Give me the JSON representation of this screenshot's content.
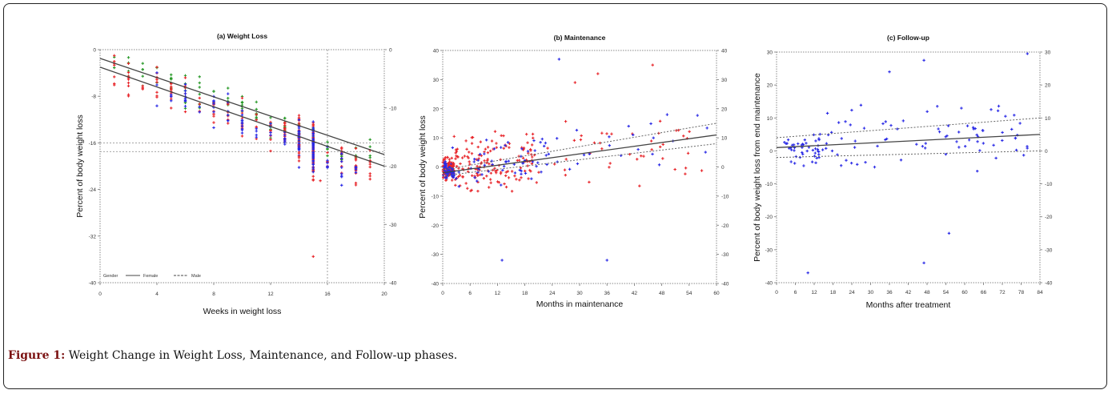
{
  "caption": {
    "label": "Figure 1:",
    "text": "Weight Change in Weight Loss, Maintenance, and Follow-up phases."
  },
  "colors": {
    "female": "#e8262b",
    "male": "#2a2ae6",
    "other": "#2a9a2a",
    "line": "#555555"
  },
  "chart_data": [
    {
      "type": "scatter",
      "title": "(a) Weight Loss",
      "xlabel": "Weeks in weight loss",
      "ylabel": "Percent of body weight loss",
      "xlim": [
        0,
        20
      ],
      "ylim": [
        -40,
        0
      ],
      "xticks": [
        0,
        4,
        8,
        12,
        16,
        20
      ],
      "yticks": [
        0,
        -8,
        -16,
        -24,
        -32,
        -40
      ],
      "y2ticks": [
        0,
        -10,
        -20,
        -30,
        -40
      ],
      "legend": {
        "title": "Gender",
        "items": [
          "Female",
          "Male"
        ],
        "placement": "bottom-left"
      },
      "vline": 16,
      "hlines": [
        -16,
        -17.5
      ],
      "trend_lines": [
        {
          "name": "Female",
          "x": [
            0,
            20
          ],
          "y": [
            -1.5,
            -18
          ]
        },
        {
          "name": "Male",
          "x": [
            0,
            20
          ],
          "y": [
            -3,
            -20
          ]
        }
      ],
      "series": [
        {
          "color": "#2a9a2a",
          "n": 110,
          "xr": [
            1,
            19
          ],
          "slope": -0.9,
          "intercept": -1.5,
          "spread": 2.8
        },
        {
          "color": "#e8262b",
          "n": 150,
          "xr": [
            1,
            19.5
          ],
          "slope": -0.95,
          "intercept": -2.5,
          "spread": 3.2
        },
        {
          "color": "#2a2ae6",
          "n": 90,
          "xr": [
            4,
            18
          ],
          "slope": -1.0,
          "intercept": -2.5,
          "spread": 3.0
        },
        {
          "color": "#e8262b",
          "n": 70,
          "xr": [
            15,
            15
          ],
          "slope": 0,
          "intercept": -17,
          "spread": 5.0
        },
        {
          "color": "#2a2ae6",
          "n": 45,
          "xr": [
            15,
            15
          ],
          "slope": 0,
          "intercept": -17,
          "spread": 4.0
        },
        {
          "color": "#e8262b",
          "n": 30,
          "xr": [
            14,
            14
          ],
          "slope": 0,
          "intercept": -15,
          "spread": 4.0
        },
        {
          "color": "#2a2ae6",
          "n": 20,
          "xr": [
            14,
            14
          ],
          "slope": 0,
          "intercept": -15,
          "spread": 3.0
        }
      ],
      "outliers": [
        {
          "x": 15,
          "y": -35.5,
          "color": "#e8262b"
        },
        {
          "x": 15.5,
          "y": -22.5,
          "color": "#e8262b"
        }
      ]
    },
    {
      "type": "scatter",
      "title": "(b) Maintenance",
      "xlabel": "Months in maintenance",
      "ylabel": "Percent of body weight loss",
      "xlim": [
        0,
        60
      ],
      "ylim": [
        -40,
        40
      ],
      "xticks": [
        0,
        6,
        12,
        18,
        24,
        30,
        36,
        42,
        48,
        54,
        60
      ],
      "yticks": [
        40,
        30,
        20,
        10,
        0,
        -10,
        -20,
        -30,
        -40
      ],
      "y2ticks": [
        40,
        30,
        20,
        10,
        0,
        -10,
        -20,
        -30,
        -40
      ],
      "trend_lines": [
        {
          "name": "",
          "x": [
            0,
            60
          ],
          "y": [
            -2,
            11
          ]
        },
        {
          "name": "",
          "x": [
            0,
            60
          ],
          "y": [
            -3,
            8
          ],
          "dashed": true
        },
        {
          "name": "",
          "x": [
            0,
            60
          ],
          "y": [
            -1,
            15
          ],
          "dashed": true
        }
      ],
      "series": [
        {
          "color": "#e8262b",
          "n": 120,
          "xr": [
            0,
            2.5
          ],
          "slope": 0,
          "intercept": -1,
          "spread": 3.5
        },
        {
          "color": "#2a2ae6",
          "n": 50,
          "xr": [
            0,
            2.5
          ],
          "slope": 0,
          "intercept": -1,
          "spread": 3.0
        },
        {
          "color": "#e8262b",
          "n": 150,
          "xr": [
            2,
            20
          ],
          "slope": 0.2,
          "intercept": -1,
          "spread": 9.0
        },
        {
          "color": "#2a2ae6",
          "n": 55,
          "xr": [
            2,
            24
          ],
          "slope": 0.15,
          "intercept": 0,
          "spread": 7.0
        },
        {
          "color": "#e8262b",
          "n": 45,
          "xr": [
            20,
            58
          ],
          "slope": 0.1,
          "intercept": 3,
          "spread": 14.0
        },
        {
          "color": "#2a2ae6",
          "n": 25,
          "xr": [
            20,
            58
          ],
          "slope": 0.1,
          "intercept": 3,
          "spread": 12.0
        }
      ],
      "outliers": [
        {
          "x": 25.5,
          "y": 37,
          "color": "#2a2ae6"
        },
        {
          "x": 46,
          "y": 35,
          "color": "#e8262b"
        },
        {
          "x": 13,
          "y": -32,
          "color": "#2a2ae6"
        },
        {
          "x": 36,
          "y": -32,
          "color": "#2a2ae6"
        },
        {
          "x": 29,
          "y": 29,
          "color": "#e8262b"
        },
        {
          "x": 34,
          "y": 32,
          "color": "#e8262b"
        }
      ]
    },
    {
      "type": "scatter",
      "title": "(c) Follow-up",
      "xlabel": "Months after treatment",
      "ylabel": "Percent of body weight loss from end maintenance",
      "xlim": [
        0,
        84
      ],
      "ylim": [
        -40,
        30
      ],
      "xticks": [
        0,
        6,
        12,
        18,
        24,
        30,
        36,
        42,
        48,
        54,
        60,
        66,
        72,
        78,
        84
      ],
      "yticks": [
        30,
        20,
        10,
        0,
        -10,
        -20,
        -30,
        -40
      ],
      "y2ticks": [
        30,
        20,
        10,
        0,
        -10,
        -20,
        -30,
        -40
      ],
      "trend_lines": [
        {
          "name": "",
          "x": [
            0,
            84
          ],
          "y": [
            1,
            5
          ]
        },
        {
          "name": "",
          "x": [
            0,
            84
          ],
          "y": [
            4,
            10
          ],
          "dashed": true
        },
        {
          "name": "",
          "x": [
            0,
            84
          ],
          "y": [
            -2,
            0
          ],
          "dashed": true
        }
      ],
      "series": [
        {
          "color": "#2a2ae6",
          "n": 45,
          "xr": [
            2,
            14
          ],
          "slope": 0,
          "intercept": 1,
          "spread": 5.5
        },
        {
          "color": "#2a2ae6",
          "n": 80,
          "xr": [
            14,
            80
          ],
          "slope": 0.05,
          "intercept": 2,
          "spread": 11.0
        }
      ],
      "outliers": [
        {
          "x": 80,
          "y": 29.5,
          "color": "#2a2ae6"
        },
        {
          "x": 47,
          "y": 27.5,
          "color": "#2a2ae6"
        },
        {
          "x": 10,
          "y": -37,
          "color": "#2a2ae6"
        },
        {
          "x": 47,
          "y": -34,
          "color": "#2a2ae6"
        },
        {
          "x": 55,
          "y": -25,
          "color": "#2a2ae6"
        },
        {
          "x": 36,
          "y": 24,
          "color": "#2a2ae6"
        }
      ]
    }
  ]
}
